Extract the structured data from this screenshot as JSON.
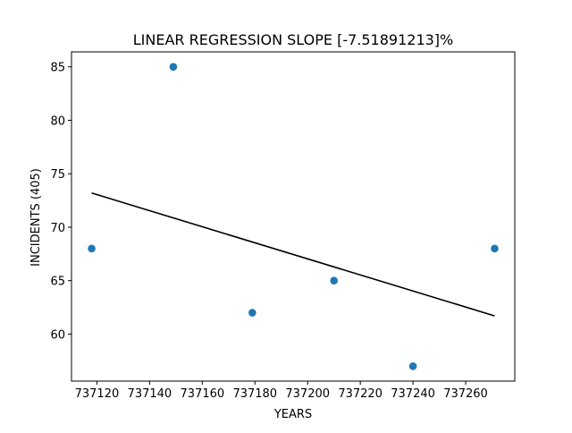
{
  "chart_data": {
    "type": "scatter",
    "title": "LINEAR REGRESSION SLOPE [-7.51891213]%",
    "xlabel": "YEARS",
    "ylabel": "INCIDENTS (405)",
    "xlim": [
      737110.35,
      737278.65
    ],
    "ylim": [
      55.6,
      86.4
    ],
    "x_ticks": [
      737120,
      737140,
      737160,
      737180,
      737200,
      737220,
      737240,
      737260
    ],
    "y_ticks": [
      60,
      65,
      70,
      75,
      80,
      85
    ],
    "grid": false,
    "series": [
      {
        "kind": "points",
        "color": "#1f77b4",
        "points": [
          {
            "x": 737118,
            "y": 68
          },
          {
            "x": 737149,
            "y": 85
          },
          {
            "x": 737179,
            "y": 62
          },
          {
            "x": 737210,
            "y": 65
          },
          {
            "x": 737240,
            "y": 57
          },
          {
            "x": 737271,
            "y": 68
          }
        ]
      },
      {
        "kind": "line",
        "color": "#000000",
        "points": [
          {
            "x": 737118,
            "y": 73.2
          },
          {
            "x": 737271,
            "y": 61.7
          }
        ]
      }
    ]
  }
}
